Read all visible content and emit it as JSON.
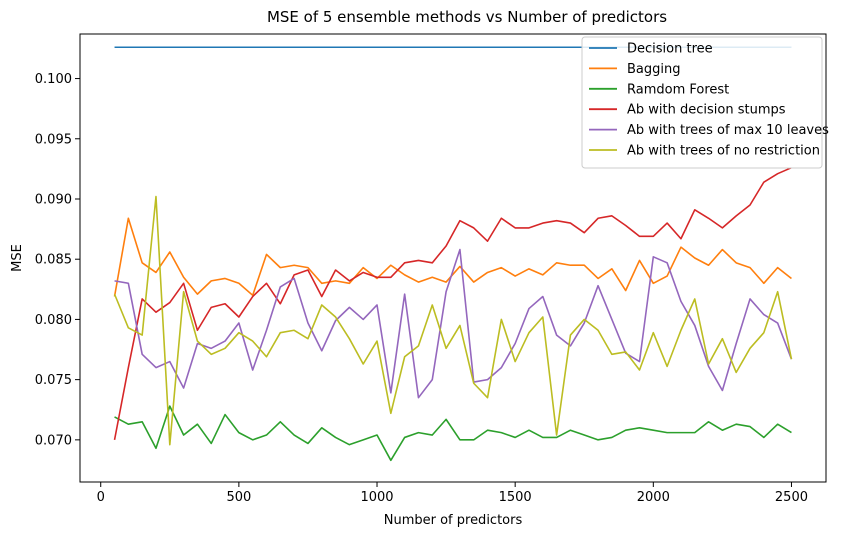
{
  "chart_data": {
    "type": "line",
    "title": "MSE of 5 ensemble methods vs Number of predictors",
    "xlabel": "Number of predictors",
    "ylabel": "MSE",
    "xlim": [
      -75,
      2625
    ],
    "ylim": [
      0.0665,
      0.1037
    ],
    "x_ticks": [
      0,
      500,
      1000,
      1500,
      2000,
      2500
    ],
    "x_tick_labels": [
      "0",
      "500",
      "1000",
      "1500",
      "2000",
      "2500"
    ],
    "y_ticks": [
      0.07,
      0.075,
      0.08,
      0.085,
      0.09,
      0.095,
      0.1
    ],
    "y_tick_labels": [
      "0.070",
      "0.075",
      "0.080",
      "0.085",
      "0.090",
      "0.095",
      "0.100"
    ],
    "grid": false,
    "legend_position": "top-right",
    "x": [
      50,
      100,
      150,
      200,
      250,
      300,
      350,
      400,
      450,
      500,
      550,
      600,
      650,
      700,
      750,
      800,
      850,
      900,
      950,
      1000,
      1050,
      1100,
      1150,
      1200,
      1250,
      1300,
      1350,
      1400,
      1450,
      1500,
      1550,
      1600,
      1650,
      1700,
      1750,
      1800,
      1850,
      1900,
      1950,
      2000,
      2050,
      2100,
      2150,
      2200,
      2250,
      2300,
      2350,
      2400,
      2450,
      2500
    ],
    "series": [
      {
        "name": "Decision tree",
        "color": "#1f77b4",
        "values": [
          0.1026,
          0.1026,
          0.1026,
          0.1026,
          0.1026,
          0.1026,
          0.1026,
          0.1026,
          0.1026,
          0.1026,
          0.1026,
          0.1026,
          0.1026,
          0.1026,
          0.1026,
          0.1026,
          0.1026,
          0.1026,
          0.1026,
          0.1026,
          0.1026,
          0.1026,
          0.1026,
          0.1026,
          0.1026,
          0.1026,
          0.1026,
          0.1026,
          0.1026,
          0.1026,
          0.1026,
          0.1026,
          0.1026,
          0.1026,
          0.1026,
          0.1026,
          0.1026,
          0.1026,
          0.1026,
          0.1026,
          0.1026,
          0.1026,
          0.1026,
          0.1026,
          0.1026,
          0.1026,
          0.1026,
          0.1026,
          0.1026,
          0.1026
        ]
      },
      {
        "name": "Bagging",
        "color": "#ff7f0e",
        "values": [
          0.0819,
          0.0884,
          0.0847,
          0.0839,
          0.0856,
          0.0835,
          0.0821,
          0.0832,
          0.0834,
          0.083,
          0.082,
          0.0854,
          0.0843,
          0.0845,
          0.0843,
          0.083,
          0.0832,
          0.083,
          0.0843,
          0.0834,
          0.0845,
          0.0837,
          0.0831,
          0.0835,
          0.0831,
          0.0844,
          0.0831,
          0.0839,
          0.0843,
          0.0836,
          0.0842,
          0.0837,
          0.0847,
          0.0845,
          0.0845,
          0.0834,
          0.0842,
          0.0824,
          0.0849,
          0.083,
          0.0836,
          0.086,
          0.0851,
          0.0845,
          0.0858,
          0.0847,
          0.0843,
          0.083,
          0.0843,
          0.0834
        ]
      },
      {
        "name": "Ramdom Forest",
        "color": "#2ca02c",
        "values": [
          0.0719,
          0.0713,
          0.0715,
          0.0693,
          0.0728,
          0.0704,
          0.0713,
          0.0697,
          0.0721,
          0.0706,
          0.07,
          0.0704,
          0.0715,
          0.0704,
          0.0697,
          0.071,
          0.0702,
          0.0696,
          0.07,
          0.0704,
          0.0683,
          0.0702,
          0.0706,
          0.0704,
          0.0717,
          0.07,
          0.07,
          0.0708,
          0.0706,
          0.0702,
          0.0708,
          0.0702,
          0.0702,
          0.0708,
          0.0704,
          0.07,
          0.0702,
          0.0708,
          0.071,
          0.0708,
          0.0706,
          0.0706,
          0.0706,
          0.0715,
          0.0708,
          0.0713,
          0.0711,
          0.0702,
          0.0713,
          0.0706
        ]
      },
      {
        "name": "Ab with decision stumps",
        "color": "#d62728",
        "values": [
          0.07,
          0.076,
          0.0817,
          0.0806,
          0.0814,
          0.083,
          0.0791,
          0.081,
          0.0813,
          0.0802,
          0.0819,
          0.083,
          0.0813,
          0.0837,
          0.0841,
          0.0819,
          0.0841,
          0.0832,
          0.0839,
          0.0835,
          0.0835,
          0.0847,
          0.0849,
          0.0847,
          0.0861,
          0.0882,
          0.0876,
          0.0865,
          0.0884,
          0.0876,
          0.0876,
          0.088,
          0.0882,
          0.088,
          0.0872,
          0.0884,
          0.0886,
          0.0878,
          0.0869,
          0.0869,
          0.088,
          0.0867,
          0.0891,
          0.0884,
          0.0876,
          0.0886,
          0.0895,
          0.0914,
          0.0921,
          0.0926
        ]
      },
      {
        "name": "Ab with trees of max 10 leaves",
        "color": "#9467bd",
        "values": [
          0.0832,
          0.083,
          0.0771,
          0.076,
          0.0765,
          0.0743,
          0.078,
          0.0776,
          0.0782,
          0.0797,
          0.0758,
          0.0791,
          0.0827,
          0.0834,
          0.0797,
          0.0774,
          0.0799,
          0.081,
          0.08,
          0.0812,
          0.0739,
          0.0821,
          0.0735,
          0.075,
          0.0823,
          0.0858,
          0.0748,
          0.075,
          0.076,
          0.078,
          0.0809,
          0.0819,
          0.0787,
          0.0778,
          0.0797,
          0.0828,
          0.08,
          0.0772,
          0.0765,
          0.0852,
          0.0847,
          0.0815,
          0.0795,
          0.0761,
          0.0741,
          0.078,
          0.0817,
          0.0804,
          0.0797,
          0.0767
        ]
      },
      {
        "name": "Ab with trees of no restriction",
        "color": "#bcbd22",
        "values": [
          0.0821,
          0.0793,
          0.0787,
          0.0902,
          0.0696,
          0.0823,
          0.0782,
          0.0771,
          0.0776,
          0.0789,
          0.0782,
          0.0769,
          0.0789,
          0.0791,
          0.0784,
          0.0812,
          0.0802,
          0.0784,
          0.0763,
          0.0782,
          0.0722,
          0.0769,
          0.0778,
          0.0812,
          0.0776,
          0.0795,
          0.0747,
          0.0735,
          0.08,
          0.0765,
          0.0789,
          0.0802,
          0.0704,
          0.0787,
          0.08,
          0.0791,
          0.0771,
          0.0773,
          0.0758,
          0.0789,
          0.0761,
          0.0791,
          0.0817,
          0.0763,
          0.0784,
          0.0756,
          0.0776,
          0.0789,
          0.0823,
          0.0767
        ]
      }
    ]
  }
}
